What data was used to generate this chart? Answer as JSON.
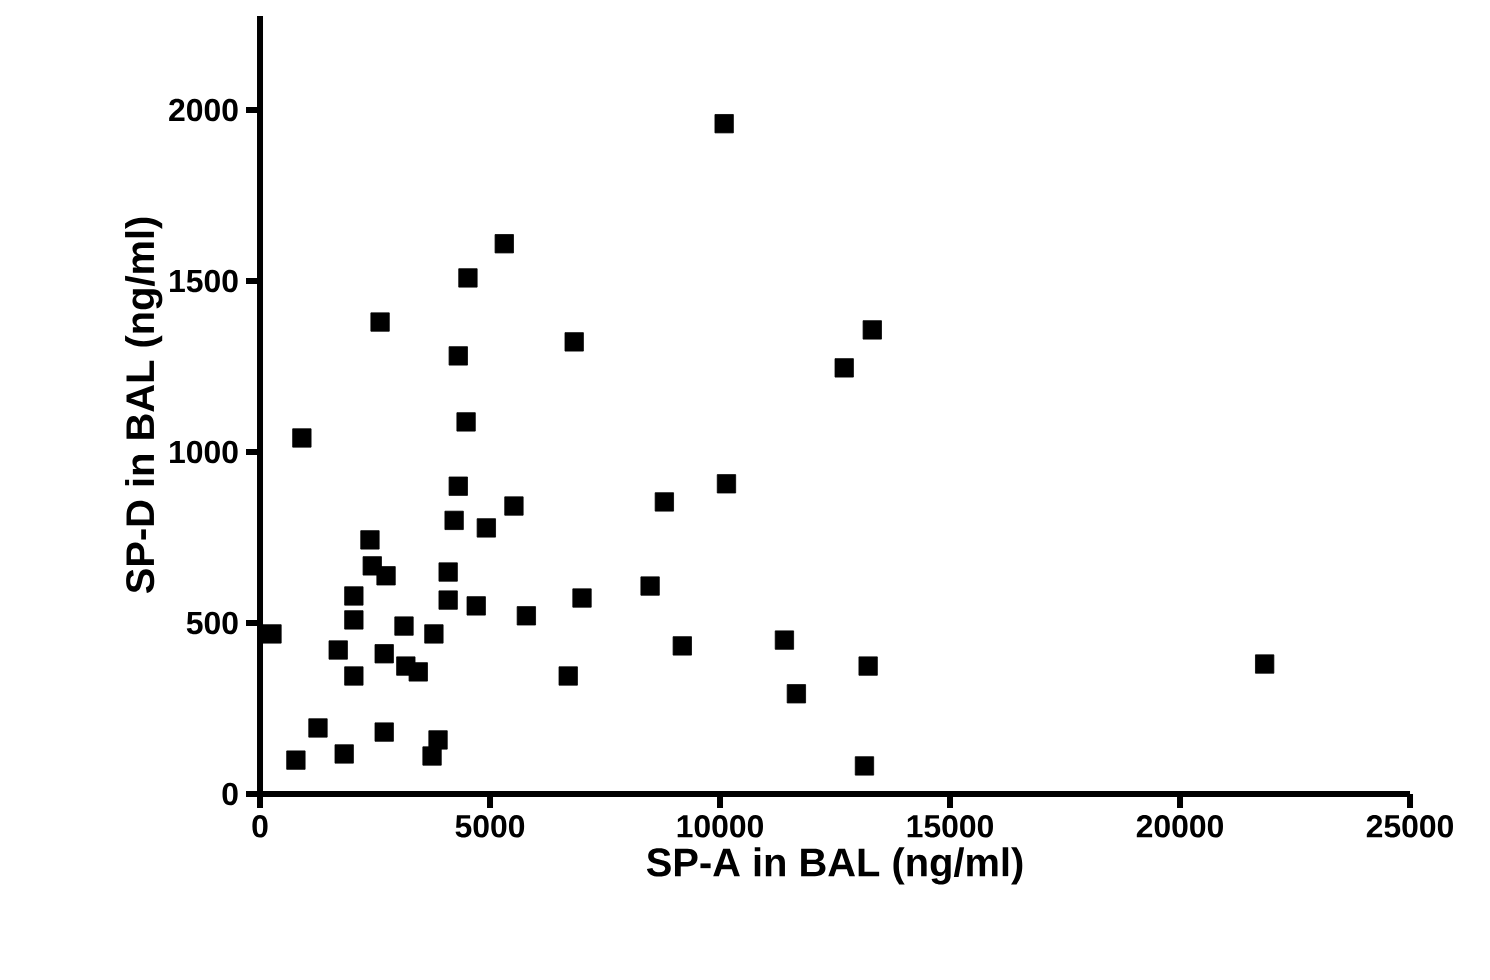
{
  "chart_data": {
    "type": "scatter",
    "xlabel": "SP-A in BAL (ng/ml)",
    "ylabel": "SP-D in BAL (ng/ml)",
    "xlim": [
      0,
      25000
    ],
    "ylim": [
      0,
      2275
    ],
    "xticks": [
      0,
      5000,
      10000,
      15000,
      20000,
      25000
    ],
    "yticks": [
      0,
      500,
      1000,
      1500,
      2000
    ],
    "marker": "square",
    "series": [
      {
        "color": "#000000",
        "x": [
          260,
          910,
          780,
          1260,
          1830,
          2700,
          3870,
          3740,
          1700,
          2040,
          2040,
          2040,
          2390,
          2440,
          2740,
          2700,
          3130,
          3170,
          3440,
          3780,
          4090,
          4090,
          4220,
          4310,
          4920,
          5520,
          4700,
          5790,
          4480,
          4310,
          4520,
          5310,
          2610,
          6830,
          13310,
          12700,
          8790,
          10140,
          7000,
          8480,
          6700,
          9180,
          11400,
          11660,
          13220,
          13140,
          21840,
          10090
        ],
        "values": [
          468,
          1041,
          99,
          193,
          117,
          181,
          158,
          111,
          421,
          579,
          509,
          345,
          743,
          667,
          638,
          410,
          491,
          374,
          357,
          468,
          649,
          567,
          800,
          900,
          778,
          842,
          550,
          521,
          1088,
          1281,
          1509,
          1609,
          1380,
          1322,
          1357,
          1246,
          854,
          907,
          573,
          608,
          345,
          433,
          450,
          293,
          374,
          82,
          380,
          1960
        ]
      }
    ]
  }
}
